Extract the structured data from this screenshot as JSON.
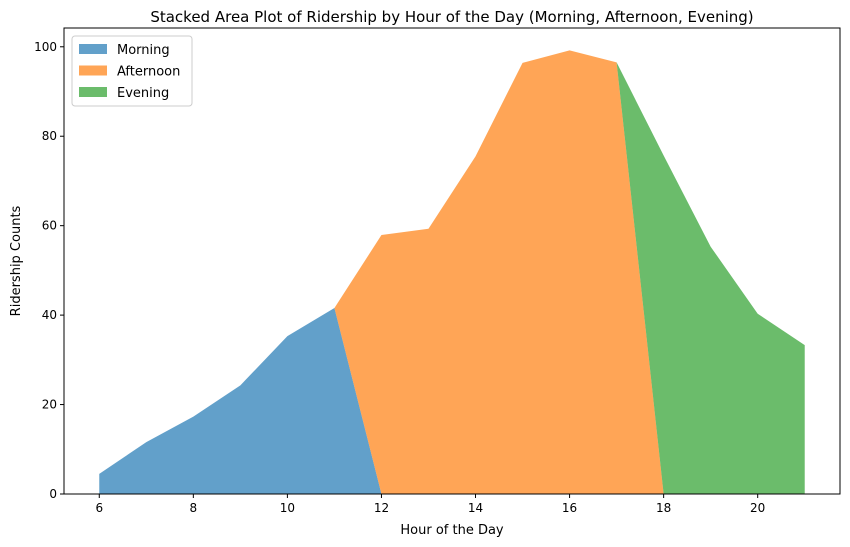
{
  "chart_data": {
    "type": "area",
    "stacked": true,
    "title": "Stacked Area Plot of Ridership by Hour of the Day (Morning, Afternoon, Evening)",
    "xlabel": "Hour of the Day",
    "ylabel": "Ridership Counts",
    "x": [
      6,
      7,
      8,
      9,
      10,
      11,
      12,
      13,
      14,
      15,
      16,
      17,
      18,
      19,
      20,
      21
    ],
    "series": [
      {
        "name": "Morning",
        "color": "#1f77b4",
        "values": [
          4.5,
          11.6,
          17.3,
          24.3,
          35.3,
          41.6,
          0,
          0,
          0,
          0,
          0,
          0,
          0,
          0,
          0,
          0
        ]
      },
      {
        "name": "Afternoon",
        "color": "#ff7f0e",
        "values": [
          0,
          0,
          0,
          0,
          0,
          0,
          57.9,
          59.3,
          75.5,
          96.4,
          99.2,
          96.5,
          0,
          0,
          0,
          0
        ]
      },
      {
        "name": "Evening",
        "color": "#2ca02c",
        "values": [
          0,
          0,
          0,
          0,
          0,
          0,
          0,
          0,
          0,
          0,
          0,
          0,
          75.7,
          55.3,
          40.3,
          33.3
        ]
      }
    ],
    "xlim": [
      5.25,
      21.75
    ],
    "ylim": [
      0,
      104.2
    ],
    "xticks": [
      6,
      8,
      10,
      12,
      14,
      16,
      18,
      20
    ],
    "yticks": [
      0,
      20,
      40,
      60,
      80,
      100
    ],
    "grid": false,
    "legend_position": "top-left"
  }
}
